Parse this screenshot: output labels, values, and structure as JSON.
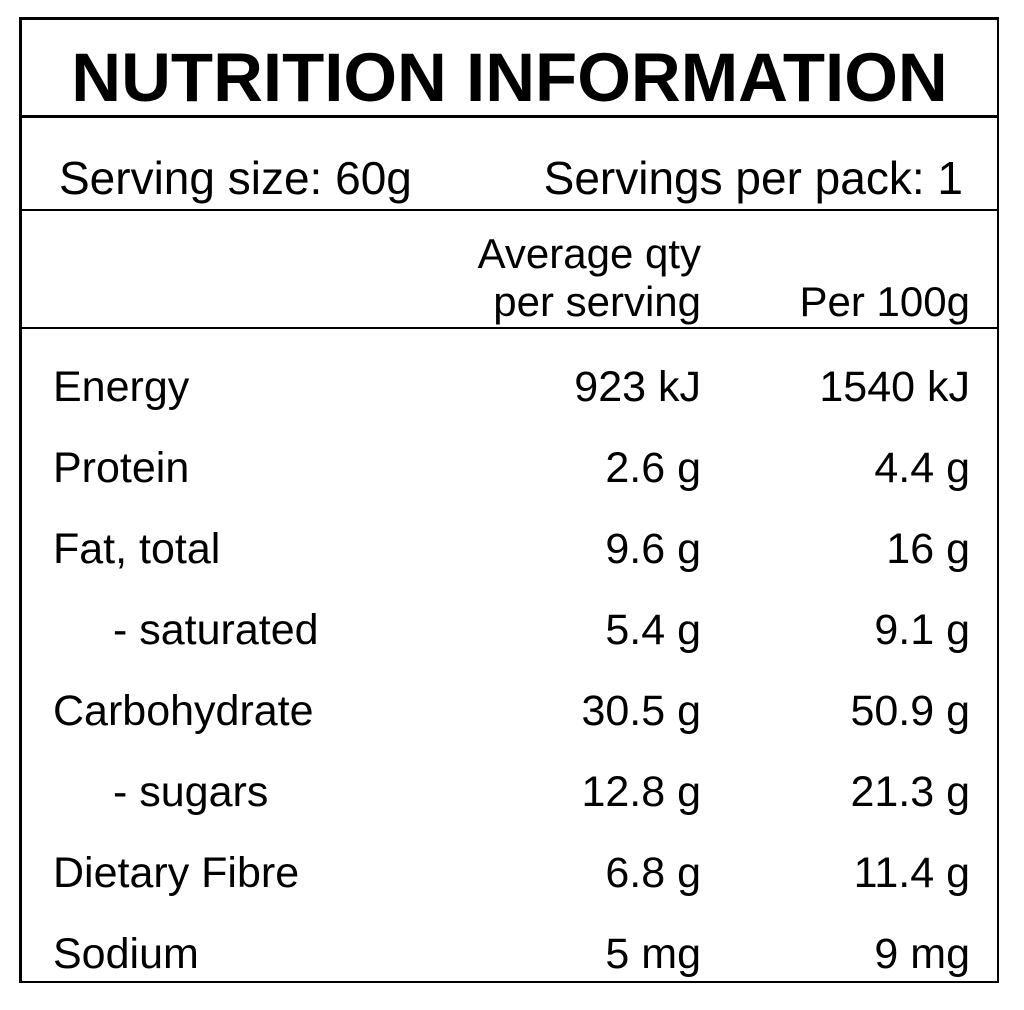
{
  "title": "NUTRITION INFORMATION",
  "serving_size": "Serving size: 60g",
  "servings_per_pack": "Servings per pack: 1",
  "headers": {
    "per_serving_line1": "Average qty",
    "per_serving_line2": "per serving",
    "per_100g": "Per 100g"
  },
  "rows": [
    {
      "label": "Energy",
      "per_serving": "923 kJ",
      "per_100g": "1540 kJ",
      "indent": false
    },
    {
      "label": "Protein",
      "per_serving": "2.6 g",
      "per_100g": "4.4 g",
      "indent": false
    },
    {
      "label": "Fat, total",
      "per_serving": "9.6 g",
      "per_100g": "16 g",
      "indent": false
    },
    {
      "label": "- saturated",
      "per_serving": "5.4 g",
      "per_100g": "9.1 g",
      "indent": true
    },
    {
      "label": "Carbohydrate",
      "per_serving": "30.5 g",
      "per_100g": "50.9 g",
      "indent": false
    },
    {
      "label": "- sugars",
      "per_serving": "12.8 g",
      "per_100g": "21.3 g",
      "indent": true
    },
    {
      "label": "Dietary Fibre",
      "per_serving": "6.8 g",
      "per_100g": "11.4 g",
      "indent": false
    },
    {
      "label": "Sodium",
      "per_serving": "5 mg",
      "per_100g": "9 mg",
      "indent": false
    }
  ]
}
